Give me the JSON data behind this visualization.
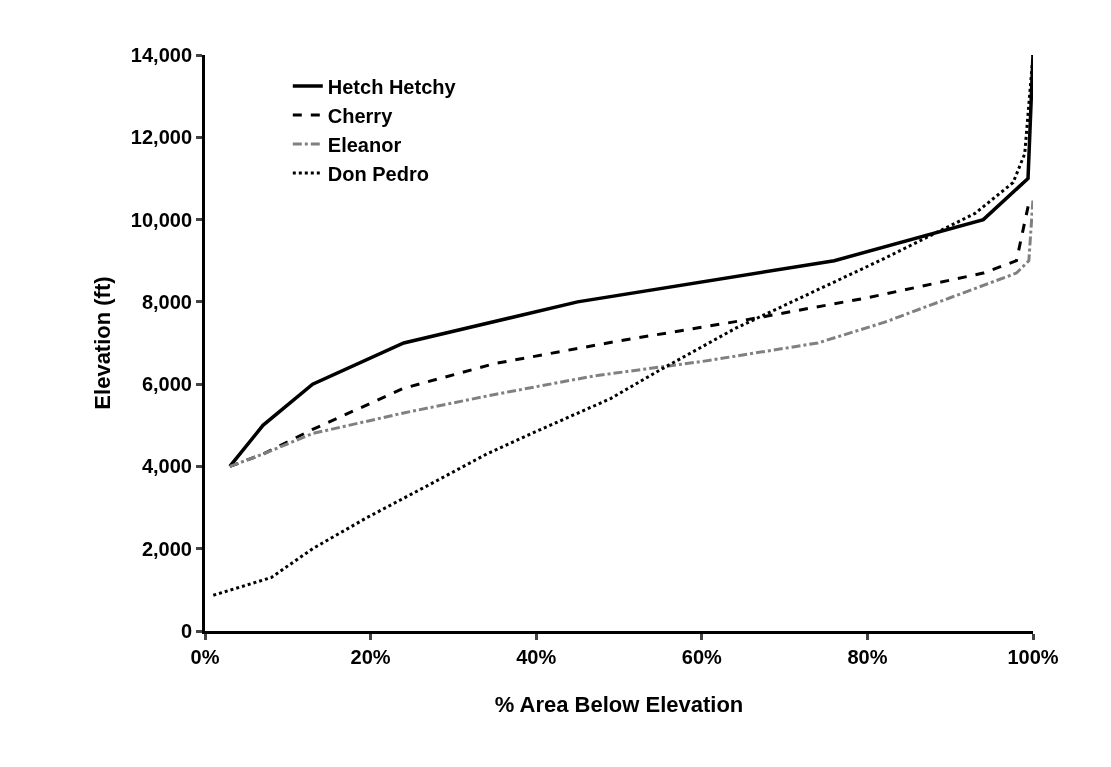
{
  "chart_data": {
    "type": "line",
    "xlabel": "% Area Below Elevation",
    "ylabel": "Elevation (ft)",
    "xlim": [
      0,
      100
    ],
    "ylim": [
      0,
      14000
    ],
    "xticks": [
      {
        "value": 0,
        "label": "0%"
      },
      {
        "value": 20,
        "label": "20%"
      },
      {
        "value": 40,
        "label": "40%"
      },
      {
        "value": 60,
        "label": "60%"
      },
      {
        "value": 80,
        "label": "80%"
      },
      {
        "value": 100,
        "label": "100%"
      }
    ],
    "yticks": [
      0,
      {
        "value": 2000,
        "label": "2,000"
      },
      {
        "value": 4000,
        "label": "4,000"
      },
      {
        "value": 6000,
        "label": "6,000"
      },
      {
        "value": 8000,
        "label": "8,000"
      },
      {
        "value": 10000,
        "label": "10,000"
      },
      {
        "value": 12000,
        "label": "12,000"
      },
      {
        "value": 14000,
        "label": "14,000"
      }
    ],
    "grid": false,
    "legend": "top left",
    "marker": "none",
    "series": [
      {
        "name": "Hetch Hetchy",
        "color": "#000000",
        "line_style": "solid",
        "x": [
          3,
          7,
          13,
          24,
          45,
          76,
          94,
          99.4,
          100
        ],
        "values": [
          4000,
          5000,
          6000,
          7000,
          8000,
          9000,
          10000,
          11000,
          14000
        ]
      },
      {
        "name": "Cherry",
        "color": "#000000",
        "line_style": "dashed",
        "x": [
          3,
          7,
          13,
          24,
          35,
          50,
          65,
          80,
          94,
          98,
          99.6
        ],
        "values": [
          4000,
          4300,
          4900,
          5900,
          6500,
          7050,
          7550,
          8100,
          8700,
          9000,
          10500
        ]
      },
      {
        "name": "Eleanor",
        "color": "#808080",
        "line_style": "dashdot",
        "x": [
          3,
          7,
          13,
          24,
          35,
          47,
          60,
          74,
          82,
          90,
          98,
          99.5,
          100
        ],
        "values": [
          4000,
          4300,
          4800,
          5300,
          5750,
          6200,
          6550,
          7000,
          7500,
          8100,
          8700,
          9000,
          10500
        ]
      },
      {
        "name": "Don Pedro",
        "color": "#000000",
        "line_style": "dotted",
        "x": [
          1,
          8,
          13,
          19.5,
          27.5,
          34,
          40,
          49,
          55,
          64,
          73,
          82,
          93,
          97.6,
          99,
          100
        ],
        "values": [
          870,
          1300,
          2000,
          2750,
          3600,
          4300,
          4850,
          5650,
          6350,
          7350,
          8200,
          9050,
          10150,
          10900,
          11600,
          14000
        ]
      }
    ]
  }
}
